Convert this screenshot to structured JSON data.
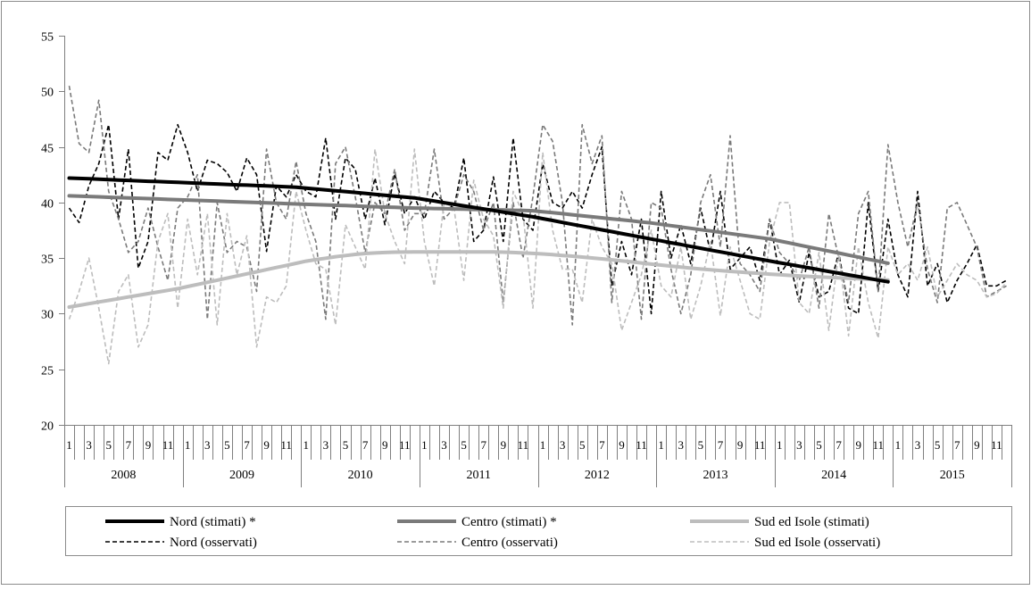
{
  "chart_data": {
    "type": "line",
    "title": "",
    "xlabel": "",
    "ylabel": "",
    "ylim": [
      20,
      55
    ],
    "yticks": [
      20,
      25,
      30,
      35,
      40,
      45,
      50,
      55
    ],
    "years": [
      "2008",
      "2009",
      "2010",
      "2011",
      "2012",
      "2013",
      "2014",
      "2015"
    ],
    "month_labels": [
      "1",
      "",
      "3",
      "",
      "5",
      "",
      "7",
      "",
      "9",
      "",
      "11",
      ""
    ],
    "grid": false,
    "legend_position": "bottom",
    "colors": {
      "nord": "#000000",
      "centro": "#7a7a7a",
      "sud": "#bdbdbd",
      "axis": "#7f7f7f",
      "frame": "#8c8c8c"
    },
    "series": [
      {
        "name": "Nord (stimati) *",
        "style": "solid-thick",
        "color_key": "nord",
        "values": [
          42.2,
          42.16,
          42.13,
          42.09,
          42.06,
          42.02,
          41.99,
          41.95,
          41.91,
          41.88,
          41.84,
          41.81,
          41.77,
          41.74,
          41.7,
          41.67,
          41.63,
          41.59,
          41.56,
          41.52,
          41.49,
          41.45,
          41.42,
          41.38,
          41.3,
          41.22,
          41.14,
          41.06,
          40.98,
          40.9,
          40.82,
          40.73,
          40.65,
          40.57,
          40.49,
          40.41,
          40.27,
          40.13,
          39.98,
          39.84,
          39.7,
          39.56,
          39.42,
          39.28,
          39.13,
          38.99,
          38.85,
          38.71,
          38.54,
          38.38,
          38.21,
          38.04,
          37.88,
          37.71,
          37.54,
          37.38,
          37.21,
          37.04,
          36.88,
          36.71,
          36.55,
          36.38,
          36.22,
          36.05,
          35.89,
          35.72,
          35.56,
          35.4,
          35.23,
          35.07,
          34.9,
          34.74,
          34.58,
          34.43,
          34.27,
          34.12,
          33.96,
          33.8,
          33.65,
          33.49,
          33.33,
          33.18,
          33.02,
          32.87
        ]
      },
      {
        "name": "Centro (stimati) *",
        "style": "solid-thick",
        "color_key": "centro",
        "values": [
          40.6,
          40.57,
          40.54,
          40.51,
          40.47,
          40.44,
          40.41,
          40.38,
          40.35,
          40.32,
          40.28,
          40.25,
          40.22,
          40.19,
          40.16,
          40.13,
          40.09,
          40.06,
          40.03,
          40.0,
          39.97,
          39.94,
          39.9,
          39.87,
          39.84,
          39.81,
          39.78,
          39.75,
          39.72,
          39.68,
          39.65,
          39.62,
          39.59,
          39.56,
          39.53,
          39.5,
          39.48,
          39.46,
          39.44,
          39.42,
          39.4,
          39.38,
          39.36,
          39.34,
          39.32,
          39.3,
          39.28,
          39.26,
          39.17,
          39.08,
          38.99,
          38.9,
          38.8,
          38.71,
          38.62,
          38.53,
          38.44,
          38.35,
          38.25,
          38.16,
          38.04,
          37.92,
          37.8,
          37.68,
          37.56,
          37.44,
          37.32,
          37.2,
          37.08,
          36.96,
          36.84,
          36.72,
          36.54,
          36.36,
          36.17,
          35.99,
          35.81,
          35.63,
          35.45,
          35.27,
          35.08,
          34.9,
          34.72,
          34.54
        ]
      },
      {
        "name": "Sud ed Isole (stimati)",
        "style": "solid-thick",
        "color_key": "sud",
        "values": [
          30.6,
          30.75,
          30.9,
          31.05,
          31.2,
          31.35,
          31.5,
          31.65,
          31.8,
          31.95,
          32.1,
          32.25,
          32.44,
          32.63,
          32.82,
          33.01,
          33.2,
          33.39,
          33.58,
          33.77,
          33.96,
          34.15,
          34.34,
          34.53,
          34.72,
          34.86,
          34.99,
          35.12,
          35.23,
          35.33,
          35.41,
          35.46,
          35.5,
          35.53,
          35.54,
          35.55,
          35.55,
          35.55,
          35.55,
          35.55,
          35.55,
          35.55,
          35.55,
          35.55,
          35.53,
          35.5,
          35.46,
          35.42,
          35.37,
          35.31,
          35.24,
          35.17,
          35.09,
          35.01,
          34.93,
          34.84,
          34.75,
          34.66,
          34.56,
          34.46,
          34.37,
          34.28,
          34.19,
          34.1,
          34.02,
          33.95,
          33.88,
          33.81,
          33.74,
          33.68,
          33.62,
          33.56,
          33.51,
          33.45,
          33.4,
          33.35,
          33.3,
          33.26,
          33.22,
          33.18,
          33.14,
          33.1,
          33.06,
          33.02
        ]
      },
      {
        "name": "Nord (osservati)",
        "style": "dashed",
        "color_key": "nord",
        "values": [
          39.5,
          38.2,
          41.5,
          43.5,
          47.0,
          38.5,
          44.8,
          34.1,
          36.5,
          44.5,
          43.8,
          47.0,
          44.5,
          41.0,
          43.8,
          43.5,
          42.7,
          41.0,
          44.0,
          42.5,
          35.6,
          41.5,
          40.5,
          42.5,
          41.0,
          40.5,
          45.8,
          38.5,
          44.0,
          43.0,
          38.5,
          42.2,
          38.0,
          42.6,
          39.0,
          40.5,
          38.5,
          41.0,
          40.0,
          39.5,
          44.0,
          36.5,
          37.5,
          42.3,
          36.5,
          45.8,
          38.5,
          37.5,
          43.5,
          40.0,
          39.5,
          41.0,
          39.5,
          42.5,
          45.0,
          32.5,
          36.5,
          33.5,
          38.5,
          30.0,
          41.0,
          35.0,
          38.0,
          34.5,
          39.5,
          35.5,
          41.0,
          34.0,
          35.0,
          36.0,
          33.0,
          38.5,
          33.5,
          34.8,
          31.0,
          35.5,
          31.5,
          32.0,
          35.5,
          30.5,
          30.0,
          40.0,
          32.0,
          38.5,
          33.5,
          31.5,
          41.0,
          32.5,
          34.5,
          31.0,
          33.0,
          34.5,
          36.2,
          32.5,
          32.5,
          33.0
        ]
      },
      {
        "name": "Centro (osservati)",
        "style": "dashed",
        "color_key": "centro",
        "values": [
          50.5,
          45.3,
          44.5,
          49.2,
          41.0,
          38.5,
          35.5,
          36.5,
          39.5,
          36.0,
          33.0,
          39.5,
          40.5,
          42.5,
          29.5,
          40.0,
          35.5,
          36.5,
          36.0,
          32.0,
          44.8,
          40.0,
          38.5,
          43.7,
          39.0,
          36.5,
          29.5,
          43.5,
          45.0,
          40.5,
          35.5,
          40.0,
          39.0,
          43.0,
          37.5,
          39.0,
          39.0,
          44.8,
          38.5,
          39.5,
          42.5,
          41.0,
          37.5,
          40.0,
          31.0,
          40.0,
          35.0,
          40.5,
          47.0,
          45.5,
          40.0,
          29.0,
          47.0,
          43.5,
          46.0,
          31.0,
          41.0,
          38.5,
          29.5,
          40.0,
          39.5,
          34.0,
          30.0,
          33.5,
          40.0,
          42.5,
          36.0,
          46.0,
          34.5,
          33.5,
          32.0,
          38.5,
          35.5,
          34.5,
          33.0,
          36.0,
          30.5,
          39.0,
          35.0,
          31.0,
          39.0,
          41.0,
          32.0,
          45.2,
          40.0,
          36.0,
          40.0,
          34.0,
          31.0,
          39.5,
          40.0,
          38.0,
          36.0,
          31.5,
          32.0,
          32.5
        ]
      },
      {
        "name": "Sud ed Isole (osservati)",
        "style": "dashed",
        "color_key": "sud",
        "values": [
          29.5,
          32.0,
          35.0,
          30.5,
          25.5,
          32.0,
          33.5,
          27.0,
          29.0,
          36.5,
          39.0,
          30.5,
          38.5,
          33.5,
          39.0,
          29.0,
          39.0,
          33.5,
          37.0,
          27.0,
          31.5,
          31.0,
          32.5,
          41.0,
          37.5,
          34.5,
          34.0,
          29.0,
          38.0,
          36.0,
          34.0,
          44.8,
          39.0,
          36.5,
          34.5,
          44.8,
          36.5,
          32.5,
          40.0,
          39.5,
          33.0,
          42.0,
          38.5,
          37.0,
          30.5,
          41.0,
          39.0,
          30.5,
          44.5,
          37.5,
          34.0,
          34.0,
          31.0,
          38.5,
          36.0,
          34.5,
          28.5,
          31.0,
          33.5,
          37.5,
          32.5,
          31.5,
          36.0,
          29.5,
          32.5,
          36.5,
          29.8,
          36.0,
          33.0,
          30.0,
          29.5,
          36.5,
          40.0,
          40.0,
          31.0,
          30.0,
          35.5,
          28.5,
          35.5,
          28.0,
          36.0,
          31.0,
          27.8,
          36.0,
          33.5,
          34.5,
          33.0,
          36.0,
          31.5,
          33.0,
          34.5,
          33.5,
          33.0,
          31.5,
          31.8,
          32.8
        ]
      }
    ],
    "legend_order": [
      0,
      1,
      2,
      3,
      4,
      5
    ]
  }
}
